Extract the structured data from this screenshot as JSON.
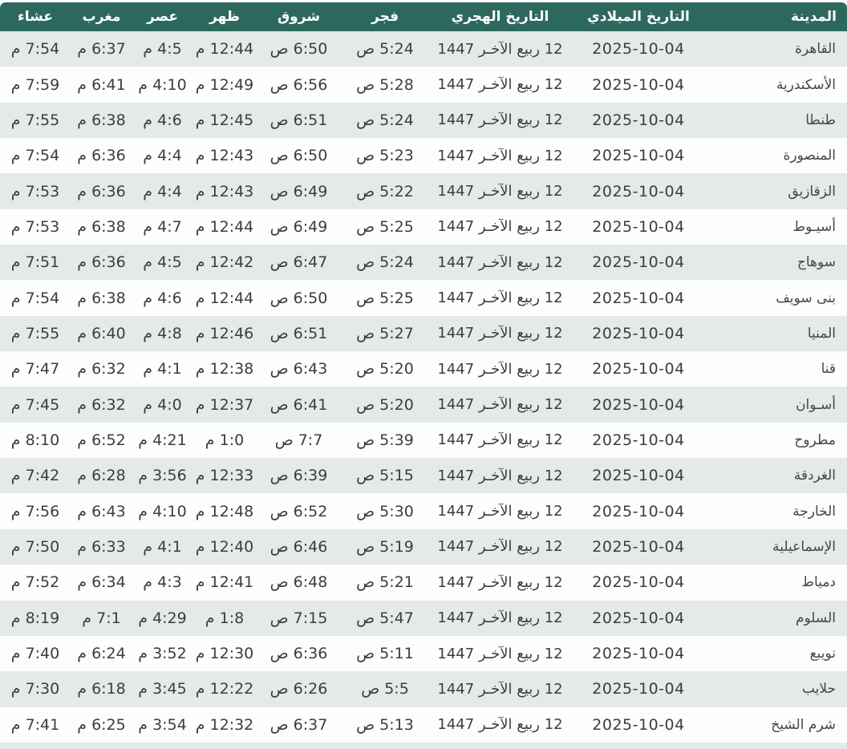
{
  "colors": {
    "header_bg": "#2d685e",
    "header_text": "#ffffff",
    "row_alt_bg": "#e3eae8",
    "row_bg": "#fdfdfd",
    "cell_text": "#3d3d3d"
  },
  "table": {
    "headers": {
      "city": "المدينة",
      "gregorian": "التاريخ الميلادي",
      "hijri": "التاريخ الهجري",
      "fajr": "فجر",
      "shurooq": "شروق",
      "dhuhr": "ظهر",
      "asr": "عصر",
      "maghrib": "مغرب",
      "isha": "عشاء"
    },
    "rows": [
      {
        "city": "القاهرة",
        "gregorian": "2025-10-04",
        "hijri": "12 ربيع الآخـر 1447",
        "fajr": "5:24 ص",
        "shurooq": "6:50 ص",
        "dhuhr": "12:44 م",
        "asr": "4:5 م",
        "maghrib": "6:37 م",
        "isha": "7:54 م"
      },
      {
        "city": "الأسكندرية",
        "gregorian": "2025-10-04",
        "hijri": "12 ربيع الآخـر 1447",
        "fajr": "5:28 ص",
        "shurooq": "6:56 ص",
        "dhuhr": "12:49 م",
        "asr": "4:10 م",
        "maghrib": "6:41 م",
        "isha": "7:59 م"
      },
      {
        "city": "طنطا",
        "gregorian": "2025-10-04",
        "hijri": "12 ربيع الآخـر 1447",
        "fajr": "5:24 ص",
        "shurooq": "6:51 ص",
        "dhuhr": "12:45 م",
        "asr": "4:6 م",
        "maghrib": "6:38 م",
        "isha": "7:55 م"
      },
      {
        "city": "المنصورة",
        "gregorian": "2025-10-04",
        "hijri": "12 ربيع الآخـر 1447",
        "fajr": "5:23 ص",
        "shurooq": "6:50 ص",
        "dhuhr": "12:43 م",
        "asr": "4:4 م",
        "maghrib": "6:36 م",
        "isha": "7:54 م"
      },
      {
        "city": "الزقازيق",
        "gregorian": "2025-10-04",
        "hijri": "12 ربيع الآخـر 1447",
        "fajr": "5:22 ص",
        "shurooq": "6:49 ص",
        "dhuhr": "12:43 م",
        "asr": "4:4 م",
        "maghrib": "6:36 م",
        "isha": "7:53 م"
      },
      {
        "city": "أسيـوط",
        "gregorian": "2025-10-04",
        "hijri": "12 ربيع الآخـر 1447",
        "fajr": "5:25 ص",
        "shurooq": "6:49 ص",
        "dhuhr": "12:44 م",
        "asr": "4:7 م",
        "maghrib": "6:38 م",
        "isha": "7:53 م"
      },
      {
        "city": "سوهاج",
        "gregorian": "2025-10-04",
        "hijri": "12 ربيع الآخـر 1447",
        "fajr": "5:24 ص",
        "shurooq": "6:47 ص",
        "dhuhr": "12:42 م",
        "asr": "4:5 م",
        "maghrib": "6:36 م",
        "isha": "7:51 م"
      },
      {
        "city": "بنى سويف",
        "gregorian": "2025-10-04",
        "hijri": "12 ربيع الآخـر 1447",
        "fajr": "5:25 ص",
        "shurooq": "6:50 ص",
        "dhuhr": "12:44 م",
        "asr": "4:6 م",
        "maghrib": "6:38 م",
        "isha": "7:54 م"
      },
      {
        "city": "المنيا",
        "gregorian": "2025-10-04",
        "hijri": "12 ربيع الآخـر 1447",
        "fajr": "5:27 ص",
        "shurooq": "6:51 ص",
        "dhuhr": "12:46 م",
        "asr": "4:8 م",
        "maghrib": "6:40 م",
        "isha": "7:55 م"
      },
      {
        "city": "قنا",
        "gregorian": "2025-10-04",
        "hijri": "12 ربيع الآخـر 1447",
        "fajr": "5:20 ص",
        "shurooq": "6:43 ص",
        "dhuhr": "12:38 م",
        "asr": "4:1 م",
        "maghrib": "6:32 م",
        "isha": "7:47 م"
      },
      {
        "city": "أسـوان",
        "gregorian": "2025-10-04",
        "hijri": "12 ربيع الآخـر 1447",
        "fajr": "5:20 ص",
        "shurooq": "6:41 ص",
        "dhuhr": "12:37 م",
        "asr": "4:0 م",
        "maghrib": "6:32 م",
        "isha": "7:45 م"
      },
      {
        "city": "مطروح",
        "gregorian": "2025-10-04",
        "hijri": "12 ربيع الآخـر 1447",
        "fajr": "5:39 ص",
        "shurooq": "7:7 ص",
        "dhuhr": "1:0 م",
        "asr": "4:21 م",
        "maghrib": "6:52 م",
        "isha": "8:10 م"
      },
      {
        "city": "الغردقة",
        "gregorian": "2025-10-04",
        "hijri": "12 ربيع الآخـر 1447",
        "fajr": "5:15 ص",
        "shurooq": "6:39 ص",
        "dhuhr": "12:33 م",
        "asr": "3:56 م",
        "maghrib": "6:28 م",
        "isha": "7:42 م"
      },
      {
        "city": "الخارجة",
        "gregorian": "2025-10-04",
        "hijri": "12 ربيع الآخـر 1447",
        "fajr": "5:30 ص",
        "shurooq": "6:52 ص",
        "dhuhr": "12:48 م",
        "asr": "4:10 م",
        "maghrib": "6:43 م",
        "isha": "7:56 م"
      },
      {
        "city": "الإسماعيلية",
        "gregorian": "2025-10-04",
        "hijri": "12 ربيع الآخـر 1447",
        "fajr": "5:19 ص",
        "shurooq": "6:46 ص",
        "dhuhr": "12:40 م",
        "asr": "4:1 م",
        "maghrib": "6:33 م",
        "isha": "7:50 م"
      },
      {
        "city": "دمياط",
        "gregorian": "2025-10-04",
        "hijri": "12 ربيع الآخـر 1447",
        "fajr": "5:21 ص",
        "shurooq": "6:48 ص",
        "dhuhr": "12:41 م",
        "asr": "4:3 م",
        "maghrib": "6:34 م",
        "isha": "7:52 م"
      },
      {
        "city": "السلوم",
        "gregorian": "2025-10-04",
        "hijri": "12 ربيع الآخـر 1447",
        "fajr": "5:47 ص",
        "shurooq": "7:15 ص",
        "dhuhr": "1:8 م",
        "asr": "4:29 م",
        "maghrib": "7:1 م",
        "isha": "8:19 م"
      },
      {
        "city": "نويبع",
        "gregorian": "2025-10-04",
        "hijri": "12 ربيع الآخـر 1447",
        "fajr": "5:11 ص",
        "shurooq": "6:36 ص",
        "dhuhr": "12:30 م",
        "asr": "3:52 م",
        "maghrib": "6:24 م",
        "isha": "7:40 م"
      },
      {
        "city": "حلايب",
        "gregorian": "2025-10-04",
        "hijri": "12 ربيع الآخـر 1447",
        "fajr": "5:5 ص",
        "shurooq": "6:26 ص",
        "dhuhr": "12:22 م",
        "asr": "3:45 م",
        "maghrib": "6:18 م",
        "isha": "7:30 م"
      },
      {
        "city": "شرم الشيخ",
        "gregorian": "2025-10-04",
        "hijri": "12 ربيع الآخـر 1447",
        "fajr": "5:13 ص",
        "shurooq": "6:37 ص",
        "dhuhr": "12:32 م",
        "asr": "3:54 م",
        "maghrib": "6:25 م",
        "isha": "7:41 م"
      }
    ]
  }
}
